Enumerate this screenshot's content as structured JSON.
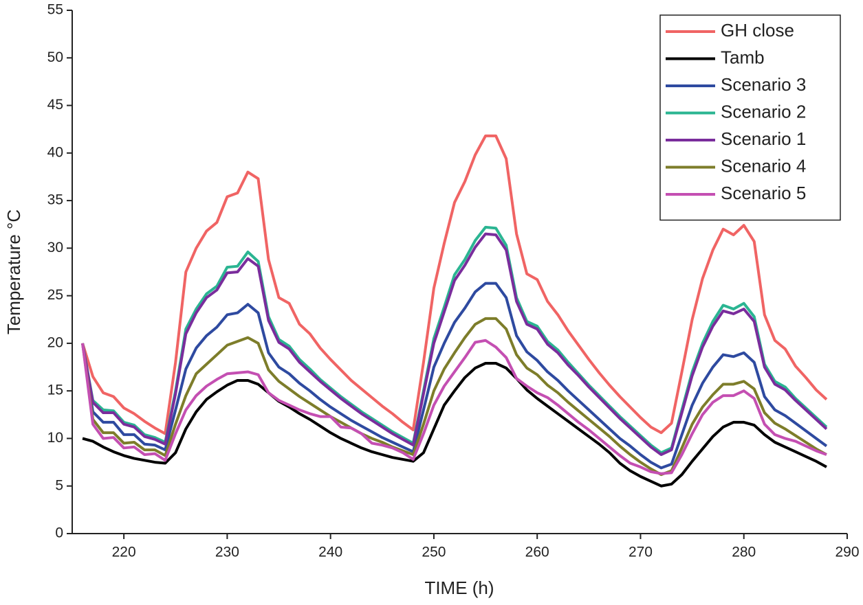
{
  "chart_data": {
    "type": "line",
    "x_label": "TIME (h)",
    "y_label": "Temperature °C",
    "x": [
      216,
      217,
      218,
      219,
      220,
      221,
      222,
      223,
      224,
      225,
      226,
      227,
      228,
      229,
      230,
      231,
      232,
      233,
      234,
      235,
      236,
      237,
      238,
      239,
      240,
      241,
      242,
      243,
      244,
      245,
      246,
      247,
      248,
      249,
      250,
      251,
      252,
      253,
      254,
      255,
      256,
      257,
      258,
      259,
      260,
      261,
      262,
      263,
      264,
      265,
      266,
      267,
      268,
      269,
      270,
      271,
      272,
      273,
      274,
      275,
      276,
      277,
      278,
      279,
      280,
      281,
      282,
      283,
      284,
      285,
      286,
      287,
      288
    ],
    "series": [
      {
        "name": "GH close",
        "color": "#f06464",
        "values": [
          20,
          16.5,
          14.8,
          14.4,
          13.2,
          12.6,
          11.8,
          11.1,
          10.5,
          18,
          27.5,
          30,
          31.8,
          32.7,
          35.4,
          35.8,
          38,
          37.3,
          28.8,
          24.8,
          24.2,
          22,
          21,
          19.5,
          18.3,
          17.2,
          16.1,
          15.2,
          14.3,
          13.4,
          12.6,
          11.7,
          10.9,
          18,
          25.8,
          30.5,
          34.8,
          37,
          39.8,
          41.8,
          41.8,
          39.4,
          31.5,
          27.3,
          26.7,
          24.4,
          23,
          21.3,
          19.8,
          18.3,
          16.9,
          15.6,
          14.4,
          13.3,
          12.2,
          11.2,
          10.6,
          11.6,
          17,
          22.5,
          26.8,
          29.8,
          32,
          31.4,
          32.4,
          30.7,
          23,
          20.3,
          19.4,
          17.6,
          16.4,
          15.1,
          14.1
        ]
      },
      {
        "name": "Tamb",
        "color": "#000000",
        "values": [
          10,
          9.7,
          9.1,
          8.6,
          8.2,
          7.9,
          7.7,
          7.5,
          7.4,
          8.5,
          11,
          12.8,
          14.1,
          14.9,
          15.6,
          16.1,
          16.1,
          15.7,
          14.8,
          13.9,
          13.3,
          12.6,
          12,
          11.3,
          10.6,
          10,
          9.5,
          9,
          8.6,
          8.3,
          8,
          7.8,
          7.6,
          8.5,
          11,
          13.5,
          15,
          16.4,
          17.4,
          17.9,
          17.9,
          17.4,
          16.3,
          15.1,
          14.2,
          13.4,
          12.6,
          11.8,
          11,
          10.2,
          9.4,
          8.5,
          7.4,
          6.6,
          6,
          5.5,
          5,
          5.2,
          6.2,
          7.6,
          8.9,
          10.2,
          11.2,
          11.7,
          11.7,
          11.4,
          10.4,
          9.6,
          9.1,
          8.6,
          8.1,
          7.6,
          7
        ]
      },
      {
        "name": "Scenario 3",
        "color": "#2e4aa0",
        "values": [
          20,
          12.8,
          11.7,
          11.7,
          10.4,
          10.4,
          9.4,
          9.3,
          8.8,
          13,
          17.3,
          19.5,
          20.8,
          21.7,
          23,
          23.2,
          24.1,
          23.2,
          19,
          17.5,
          16.8,
          15.8,
          15,
          14.1,
          13.3,
          12.6,
          11.9,
          11.3,
          10.7,
          10.1,
          9.6,
          9.1,
          8.6,
          13,
          17.5,
          20,
          22.2,
          23.7,
          25.4,
          26.3,
          26.3,
          24.8,
          20.8,
          19.1,
          18.2,
          17,
          16.1,
          15,
          14,
          13,
          12,
          11,
          10,
          9.2,
          8.3,
          7.5,
          6.9,
          7.3,
          10.4,
          13.5,
          15.8,
          17.5,
          18.8,
          18.6,
          19,
          18,
          14.4,
          13,
          12.4,
          11.6,
          10.8,
          10,
          9.2
        ]
      },
      {
        "name": "Scenario 2",
        "color": "#2bb592",
        "values": [
          20,
          14,
          13,
          12.9,
          11.7,
          11.4,
          10.4,
          10.1,
          9.6,
          15,
          21.5,
          23.6,
          25.2,
          26,
          28,
          28.1,
          29.6,
          28.6,
          22.8,
          20.4,
          19.7,
          18.3,
          17.3,
          16.2,
          15.3,
          14.4,
          13.6,
          12.8,
          12.1,
          11.4,
          10.7,
          10.1,
          9.5,
          15,
          20.5,
          23.8,
          27.2,
          28.8,
          30.8,
          32.2,
          32.1,
          30.3,
          24.8,
          22.3,
          21.8,
          20.2,
          19.3,
          18,
          16.8,
          15.6,
          14.5,
          13.4,
          12.3,
          11.3,
          10.3,
          9.3,
          8.5,
          9,
          13,
          17,
          20,
          22.3,
          24,
          23.6,
          24.2,
          22.8,
          17.8,
          16,
          15.4,
          14.2,
          13.2,
          12.2,
          11.2
        ]
      },
      {
        "name": "Scenario 1",
        "color": "#7a2d9c",
        "values": [
          20,
          13.8,
          12.7,
          12.7,
          11.5,
          11.2,
          10.2,
          9.9,
          9.4,
          14.7,
          21,
          23.2,
          24.8,
          25.6,
          27.4,
          27.5,
          28.9,
          28.1,
          22.4,
          20.1,
          19.4,
          18,
          17,
          16,
          15.1,
          14.2,
          13.4,
          12.6,
          11.9,
          11.2,
          10.5,
          9.9,
          9.3,
          14.7,
          20,
          23.3,
          26.6,
          28.2,
          30.1,
          31.5,
          31.4,
          29.8,
          24.4,
          22,
          21.5,
          19.9,
          19,
          17.7,
          16.6,
          15.4,
          14.3,
          13.2,
          12.1,
          11.1,
          10.1,
          9.1,
          8.3,
          8.8,
          12.7,
          16.6,
          19.6,
          21.8,
          23.4,
          23.1,
          23.6,
          22.3,
          17.5,
          15.7,
          15.1,
          14,
          13,
          12,
          11
        ]
      },
      {
        "name": "Scenario 4",
        "color": "#7d7d2a",
        "values": [
          20,
          12,
          10.6,
          10.6,
          9.5,
          9.6,
          8.8,
          8.8,
          8.2,
          11.5,
          14.5,
          16.8,
          17.8,
          18.8,
          19.8,
          20.2,
          20.6,
          20,
          17.2,
          16,
          15.2,
          14.4,
          13.7,
          13,
          12.3,
          11.7,
          11.1,
          10.5,
          10,
          9.6,
          9.1,
          8.7,
          8.3,
          11.5,
          15,
          17.3,
          19,
          20.6,
          22,
          22.6,
          22.6,
          21.5,
          18.8,
          17.4,
          16.7,
          15.6,
          14.8,
          13.8,
          12.9,
          12,
          11.1,
          10.2,
          9.2,
          8.3,
          7.5,
          6.8,
          6.2,
          6.6,
          9,
          11.5,
          13.3,
          14.6,
          15.7,
          15.7,
          16,
          15.2,
          12.7,
          11.6,
          11,
          10.3,
          9.6,
          8.9,
          8.3
        ]
      },
      {
        "name": "Scenario 5",
        "color": "#c44fb2",
        "values": [
          20,
          11.5,
          10,
          10.1,
          9,
          9.1,
          8.3,
          8.4,
          7.7,
          10.5,
          13,
          14.5,
          15.5,
          16.2,
          16.8,
          16.9,
          17,
          16.7,
          14.8,
          14,
          13.5,
          13,
          12.6,
          12.3,
          12.3,
          11.2,
          11.1,
          10.5,
          9.5,
          9.3,
          9,
          8.5,
          7.8,
          10.5,
          13.5,
          15.5,
          17,
          18.5,
          20.1,
          20.3,
          19.6,
          18.5,
          16.3,
          15.5,
          14.8,
          14.3,
          13.5,
          12.6,
          11.7,
          10.9,
          10,
          9.1,
          8.2,
          7.4,
          7,
          6.5,
          6.3,
          6.4,
          8.3,
          10.5,
          12.5,
          13.8,
          14.5,
          14.5,
          15,
          14.2,
          11.5,
          10.4,
          10,
          9.7,
          9.2,
          8.7,
          8.3
        ]
      }
    ],
    "xlim": [
      215,
      290
    ],
    "xticks": [
      220,
      230,
      240,
      250,
      260,
      270,
      280,
      290
    ],
    "ylim": [
      0,
      55
    ],
    "yticks": [
      0,
      5,
      10,
      15,
      20,
      25,
      30,
      35,
      40,
      45,
      50,
      55
    ],
    "grid": false,
    "legend": "top-right"
  }
}
